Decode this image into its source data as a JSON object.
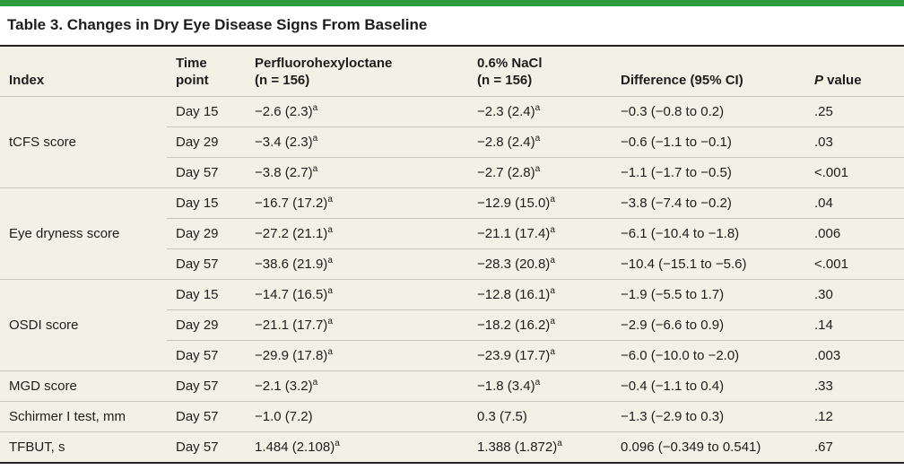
{
  "page": {
    "title": "Table 3. Changes in Dry Eye Disease Signs From Baseline",
    "accent_color": "#2e9b3d",
    "table_background_color": "#f3f1e6",
    "heavy_rule_color": "#222222",
    "separator_color": "#c8c5ba",
    "text_color": "#1d1d1d"
  },
  "table": {
    "headers": [
      {
        "id": "index",
        "lines": [
          "Index"
        ]
      },
      {
        "id": "time-point",
        "lines": [
          "Time",
          "point"
        ]
      },
      {
        "id": "pfhx",
        "lines": [
          "Perfluorohexyloctane",
          "(n = 156)"
        ]
      },
      {
        "id": "nacl",
        "lines": [
          "0.6% NaCl",
          "(n = 156)"
        ]
      },
      {
        "id": "difference",
        "lines": [
          "Difference (95% CI)"
        ]
      },
      {
        "id": "p-value",
        "lines": [
          "P value"
        ],
        "italic_first": true
      }
    ],
    "groups": [
      {
        "index_label": "tCFS score",
        "rows": [
          {
            "time_point": "Day 15",
            "pfhx": {
              "text": "−2.6 (2.3)",
              "sup": "a"
            },
            "nacl": {
              "text": "−2.3 (2.4)",
              "sup": "a"
            },
            "difference": "−0.3 (−0.8 to 0.2)",
            "p_value": ".25"
          },
          {
            "time_point": "Day 29",
            "pfhx": {
              "text": "−3.4 (2.3)",
              "sup": "a"
            },
            "nacl": {
              "text": "−2.8 (2.4)",
              "sup": "a"
            },
            "difference": "−0.6 (−1.1 to −0.1)",
            "p_value": ".03"
          },
          {
            "time_point": "Day 57",
            "pfhx": {
              "text": "−3.8 (2.7)",
              "sup": "a"
            },
            "nacl": {
              "text": "−2.7 (2.8)",
              "sup": "a"
            },
            "difference": "−1.1 (−1.7 to −0.5)",
            "p_value": "<.001"
          }
        ]
      },
      {
        "index_label": "Eye dryness score",
        "rows": [
          {
            "time_point": "Day 15",
            "pfhx": {
              "text": "−16.7 (17.2)",
              "sup": "a"
            },
            "nacl": {
              "text": "−12.9 (15.0)",
              "sup": "a"
            },
            "difference": "−3.8 (−7.4 to −0.2)",
            "p_value": ".04"
          },
          {
            "time_point": "Day 29",
            "pfhx": {
              "text": "−27.2 (21.1)",
              "sup": "a"
            },
            "nacl": {
              "text": "−21.1 (17.4)",
              "sup": "a"
            },
            "difference": "−6.1 (−10.4 to −1.8)",
            "p_value": ".006"
          },
          {
            "time_point": "Day 57",
            "pfhx": {
              "text": "−38.6 (21.9)",
              "sup": "a"
            },
            "nacl": {
              "text": "−28.3 (20.8)",
              "sup": "a"
            },
            "difference": "−10.4 (−15.1 to −5.6)",
            "p_value": "<.001"
          }
        ]
      },
      {
        "index_label": "OSDI score",
        "rows": [
          {
            "time_point": "Day 15",
            "pfhx": {
              "text": "−14.7 (16.5)",
              "sup": "a"
            },
            "nacl": {
              "text": "−12.8 (16.1)",
              "sup": "a"
            },
            "difference": "−1.9 (−5.5 to 1.7)",
            "p_value": ".30"
          },
          {
            "time_point": "Day 29",
            "pfhx": {
              "text": "−21.1 (17.7)",
              "sup": "a"
            },
            "nacl": {
              "text": "−18.2 (16.2)",
              "sup": "a"
            },
            "difference": "−2.9 (−6.6 to 0.9)",
            "p_value": ".14"
          },
          {
            "time_point": "Day 57",
            "pfhx": {
              "text": "−29.9 (17.8)",
              "sup": "a"
            },
            "nacl": {
              "text": "−23.9 (17.7)",
              "sup": "a"
            },
            "difference": "−6.0 (−10.0 to −2.0)",
            "p_value": ".003"
          }
        ]
      },
      {
        "index_label": "MGD score",
        "rows": [
          {
            "time_point": "Day 57",
            "pfhx": {
              "text": "−2.1 (3.2)",
              "sup": "a"
            },
            "nacl": {
              "text": "−1.8 (3.4)",
              "sup": "a"
            },
            "difference": "−0.4 (−1.1 to 0.4)",
            "p_value": ".33"
          }
        ]
      },
      {
        "index_label": "Schirmer I test, mm",
        "rows": [
          {
            "time_point": "Day 57",
            "pfhx": {
              "text": "−1.0 (7.2)"
            },
            "nacl": {
              "text": "0.3 (7.5)"
            },
            "difference": "−1.3 (−2.9 to 0.3)",
            "p_value": ".12"
          }
        ]
      },
      {
        "index_label": "TFBUT, s",
        "rows": [
          {
            "time_point": "Day 57",
            "pfhx": {
              "text": "1.484 (2.108)",
              "sup": "a"
            },
            "nacl": {
              "text": "1.388 (1.872)",
              "sup": "a"
            },
            "difference": "0.096 (−0.349 to 0.541)",
            "p_value": ".67"
          }
        ]
      }
    ]
  }
}
